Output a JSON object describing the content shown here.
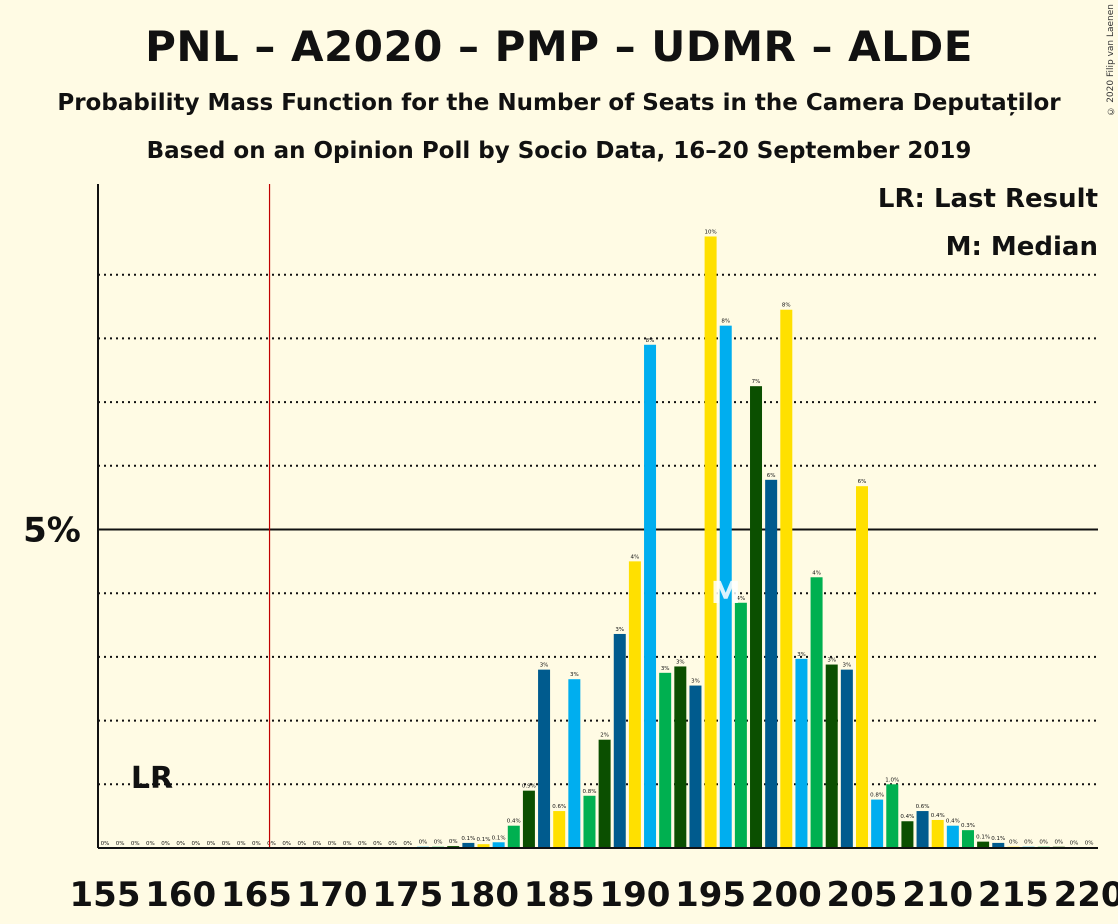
{
  "header": {
    "title": "PNL – A2020 – PMP – UDMR – ALDE",
    "subtitle": "Probability Mass Function for the Number of Seats in the Camera Deputaților",
    "source": "Based on an Opinion Poll by Socio Data, 16–20 September 2019",
    "copyright": "© 2020 Filip van Laenen"
  },
  "legend": {
    "lr": "LR: Last Result",
    "m": "M: Median"
  },
  "colors": {
    "yellow": "#FFE000",
    "blue": "#00AEEF",
    "green": "#00B050",
    "darkgreen": "#0B4F00",
    "darkblue": "#005B8E",
    "lastResultLine": "#C00000",
    "background": "#FFFBE4"
  },
  "chart_data": {
    "type": "bar",
    "x_range": [
      155,
      220
    ],
    "ylim": [
      0,
      10.4
    ],
    "y_tick_label": "5%",
    "y_tick_value": 5,
    "gridlines": [
      1,
      2,
      3,
      4,
      6,
      7,
      8,
      9
    ],
    "x_tick_labels": [
      "155",
      "160",
      "165",
      "170",
      "175",
      "180",
      "185",
      "190",
      "195",
      "200",
      "205",
      "210",
      "215",
      "220"
    ],
    "last_result": {
      "seat": 166,
      "label": "LR"
    },
    "median": {
      "seat": 196,
      "label": "M"
    },
    "color_cycle": [
      "yellow",
      "blue",
      "green",
      "darkgreen",
      "darkblue"
    ],
    "seats": [
      155,
      156,
      157,
      158,
      159,
      160,
      161,
      162,
      163,
      164,
      165,
      166,
      167,
      168,
      169,
      170,
      171,
      172,
      173,
      174,
      175,
      176,
      177,
      178,
      179,
      180,
      181,
      182,
      183,
      184,
      185,
      186,
      187,
      188,
      189,
      190,
      191,
      192,
      193,
      194,
      195,
      196,
      197,
      198,
      199,
      200,
      201,
      202,
      203,
      204,
      205,
      206,
      207,
      208,
      209,
      210,
      211,
      212,
      213,
      214,
      215,
      216,
      217,
      218,
      219,
      220
    ],
    "values": [
      0,
      0,
      0,
      0,
      0,
      0,
      0,
      0,
      0,
      0,
      0,
      0,
      0,
      0,
      0,
      0,
      0,
      0,
      0,
      0,
      0,
      0.02,
      0.02,
      0.03,
      0.08,
      0.06,
      0.09,
      0.35,
      0.9,
      2.8,
      0.58,
      2.65,
      0.82,
      1.7,
      3.36,
      4.5,
      7.9,
      2.75,
      2.85,
      2.55,
      9.6,
      8.2,
      3.85,
      7.25,
      5.78,
      8.45,
      2.97,
      4.25,
      2.88,
      2.8,
      5.68,
      0.76,
      1.0,
      0.42,
      0.58,
      0.44,
      0.35,
      0.28,
      0.1,
      0.08,
      0.02,
      0.02,
      0.02,
      0.02,
      0.01,
      0.01
    ],
    "labels": [
      "0%",
      "0%",
      "0%",
      "0%",
      "0%",
      "0%",
      "0%",
      "0%",
      "0%",
      "0%",
      "0%",
      "0%",
      "0%",
      "0%",
      "0%",
      "0%",
      "0%",
      "0%",
      "0%",
      "0%",
      "0%",
      "0%",
      "0%",
      "0%",
      "0.1%",
      "0.1%",
      "0.1%",
      "0.4%",
      "0.9%",
      "3%",
      "0.6%",
      "3%",
      "0.8%",
      "2%",
      "3%",
      "4%",
      "8%",
      "3%",
      "3%",
      "3%",
      "10%",
      "8%",
      "4%",
      "7%",
      "6%",
      "8%",
      "3%",
      "4%",
      "3%",
      "3%",
      "6%",
      "0.8%",
      "1.0%",
      "0.4%",
      "0.6%",
      "0.4%",
      "0.4%",
      "0.3%",
      "0.1%",
      "0.1%",
      "0%",
      "0%",
      "0%",
      "0%",
      "0%",
      "0%"
    ]
  }
}
